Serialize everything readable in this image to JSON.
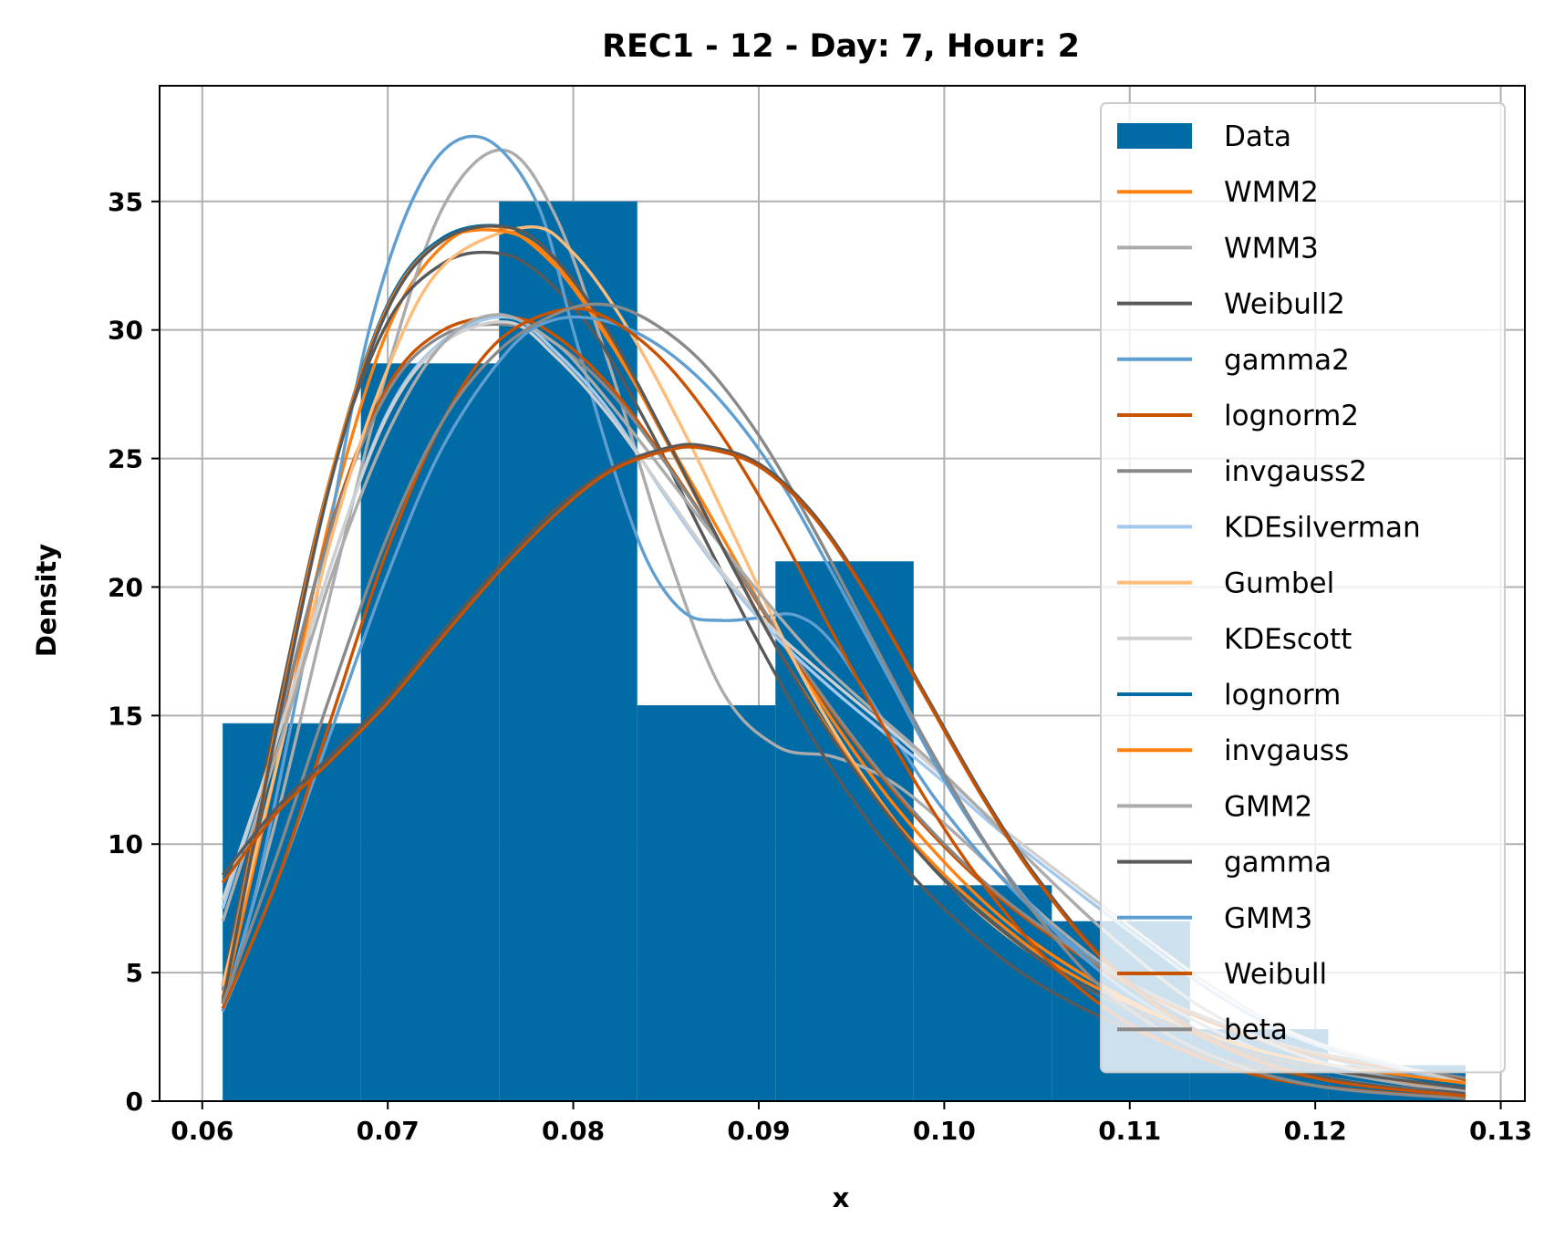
{
  "chart_data": {
    "type": "histogram",
    "title": "REC1 - 12 - Day: 7, Hour: 2",
    "xlabel": "x",
    "ylabel": "Density",
    "xlim": [
      0.0577,
      0.1313
    ],
    "ylim": [
      0,
      39.5
    ],
    "xticks": [
      0.06,
      0.07,
      0.08,
      0.09,
      0.1,
      0.11,
      0.12,
      0.13
    ],
    "xtick_labels": [
      "0.06",
      "0.07",
      "0.08",
      "0.09",
      "0.10",
      "0.11",
      "0.12",
      "0.13"
    ],
    "yticks": [
      0,
      5,
      10,
      15,
      20,
      25,
      30,
      35
    ],
    "ytick_labels": [
      "0",
      "5",
      "10",
      "15",
      "20",
      "25",
      "30",
      "35"
    ],
    "grid": true,
    "legend_position": "upper right",
    "histogram": {
      "name": "Data",
      "color": "#006BA4",
      "bin_edges": [
        0.0611,
        0.06855,
        0.076,
        0.08345,
        0.0909,
        0.09835,
        0.1058,
        0.11325,
        0.1207,
        0.1281
      ],
      "densities": [
        14.7,
        28.7,
        35.0,
        15.4,
        21.0,
        8.4,
        7.0,
        2.8,
        1.4
      ]
    },
    "series": [
      {
        "name": "WMM2",
        "color": "#FF800E",
        "x": [
          0.0611,
          0.064,
          0.067,
          0.07,
          0.073,
          0.076,
          0.079,
          0.082,
          0.085,
          0.088,
          0.091,
          0.094,
          0.097,
          0.1,
          0.103,
          0.106,
          0.11,
          0.115,
          0.12,
          0.1281
        ],
        "y": [
          3.8,
          13.0,
          23.0,
          30.0,
          33.3,
          34.0,
          32.5,
          29.5,
          25.8,
          22.0,
          18.2,
          14.8,
          11.8,
          9.3,
          7.2,
          5.6,
          3.9,
          2.3,
          1.3,
          0.4
        ]
      },
      {
        "name": "WMM3",
        "color": "#ABABAB",
        "x": [
          0.0611,
          0.064,
          0.067,
          0.07,
          0.073,
          0.0762,
          0.079,
          0.082,
          0.085,
          0.088,
          0.091,
          0.094,
          0.097,
          0.1,
          0.103,
          0.106,
          0.11,
          0.115,
          0.12,
          0.1281
        ],
        "y": [
          3.5,
          11.0,
          20.0,
          28.5,
          34.8,
          37.0,
          34.5,
          28.5,
          21.5,
          16.0,
          13.8,
          13.4,
          12.5,
          10.8,
          8.8,
          6.8,
          4.6,
          2.6,
          1.3,
          0.3
        ]
      },
      {
        "name": "Weibull2",
        "color": "#595959",
        "x": [
          0.0611,
          0.064,
          0.067,
          0.07,
          0.073,
          0.0758,
          0.078,
          0.081,
          0.084,
          0.087,
          0.09,
          0.093,
          0.096,
          0.099,
          0.102,
          0.105,
          0.109,
          0.114,
          0.12,
          0.1281
        ],
        "y": [
          4.5,
          15.0,
          24.5,
          30.3,
          32.6,
          33.0,
          32.3,
          30.0,
          26.3,
          22.0,
          17.8,
          14.0,
          10.8,
          8.2,
          6.2,
          4.6,
          3.1,
          1.8,
          0.9,
          0.3
        ]
      },
      {
        "name": "gamma2",
        "color": "#5F9ED1",
        "x": [
          0.0611,
          0.063,
          0.066,
          0.069,
          0.072,
          0.075,
          0.078,
          0.08,
          0.082,
          0.084,
          0.086,
          0.088,
          0.09,
          0.092,
          0.094,
          0.097,
          0.1,
          0.104,
          0.108,
          0.113,
          0.12,
          0.1281
        ],
        "y": [
          3.5,
          8.5,
          19.0,
          30.0,
          36.0,
          37.5,
          35.0,
          30.0,
          25.0,
          21.0,
          19.0,
          18.7,
          18.8,
          18.9,
          17.8,
          14.5,
          11.3,
          8.0,
          5.5,
          3.5,
          1.8,
          0.6
        ]
      },
      {
        "name": "lognorm2",
        "color": "#C85200",
        "x": [
          0.0611,
          0.064,
          0.067,
          0.07,
          0.073,
          0.0765,
          0.079,
          0.082,
          0.085,
          0.088,
          0.091,
          0.094,
          0.097,
          0.1,
          0.103,
          0.106,
          0.11,
          0.115,
          0.12,
          0.1281
        ],
        "y": [
          4.0,
          14.0,
          22.5,
          27.8,
          30.0,
          30.5,
          29.8,
          27.8,
          24.9,
          21.6,
          18.2,
          15.1,
          12.3,
          9.9,
          7.9,
          6.3,
          4.5,
          2.9,
          1.8,
          0.8
        ]
      },
      {
        "name": "invgauss2",
        "color": "#898989",
        "x": [
          0.0611,
          0.064,
          0.067,
          0.07,
          0.073,
          0.0765,
          0.079,
          0.082,
          0.085,
          0.088,
          0.091,
          0.094,
          0.097,
          0.1,
          0.103,
          0.106,
          0.11,
          0.115,
          0.12,
          0.1281
        ],
        "y": [
          4.3,
          14.2,
          22.4,
          27.6,
          29.8,
          30.2,
          29.5,
          27.6,
          24.8,
          21.6,
          18.3,
          15.2,
          12.4,
          10.0,
          8.0,
          6.4,
          4.6,
          3.0,
          1.9,
          0.9
        ]
      },
      {
        "name": "KDEsilverman",
        "color": "#A2C8EC",
        "x": [
          0.0611,
          0.064,
          0.067,
          0.07,
          0.073,
          0.0765,
          0.079,
          0.082,
          0.085,
          0.088,
          0.091,
          0.094,
          0.097,
          0.1,
          0.103,
          0.106,
          0.11,
          0.115,
          0.12,
          0.1281
        ],
        "y": [
          7.5,
          14.0,
          21.0,
          26.8,
          29.6,
          30.5,
          29.2,
          26.8,
          23.5,
          20.5,
          18.0,
          16.0,
          14.2,
          12.4,
          10.5,
          8.8,
          6.6,
          4.0,
          2.2,
          0.6
        ]
      },
      {
        "name": "Gumbel",
        "color": "#FFBC79",
        "x": [
          0.0611,
          0.064,
          0.067,
          0.07,
          0.073,
          0.0775,
          0.08,
          0.083,
          0.086,
          0.089,
          0.092,
          0.095,
          0.098,
          0.101,
          0.104,
          0.107,
          0.11,
          0.115,
          0.12,
          0.1281
        ],
        "y": [
          4.5,
          13.0,
          22.0,
          28.5,
          32.5,
          34.0,
          33.0,
          30.0,
          26.0,
          21.5,
          17.0,
          13.3,
          10.3,
          7.9,
          6.1,
          4.7,
          3.6,
          2.3,
          1.4,
          0.6
        ]
      },
      {
        "name": "KDEscott",
        "color": "#CFCFCF",
        "x": [
          0.0611,
          0.064,
          0.067,
          0.07,
          0.073,
          0.0765,
          0.079,
          0.082,
          0.085,
          0.088,
          0.091,
          0.094,
          0.097,
          0.1,
          0.103,
          0.106,
          0.11,
          0.115,
          0.12,
          0.1281
        ],
        "y": [
          7.8,
          14.0,
          21.0,
          26.7,
          29.5,
          30.3,
          29.0,
          26.6,
          23.6,
          20.6,
          18.2,
          16.3,
          14.5,
          12.6,
          10.7,
          9.0,
          6.8,
          4.2,
          2.3,
          0.7
        ]
      },
      {
        "name": "lognorm",
        "color": "#006BA4",
        "x": [
          0.0611,
          0.064,
          0.067,
          0.07,
          0.073,
          0.0765,
          0.079,
          0.082,
          0.085,
          0.088,
          0.091,
          0.094,
          0.097,
          0.1,
          0.103,
          0.106,
          0.11,
          0.115,
          0.12,
          0.1281
        ],
        "y": [
          3.8,
          14.5,
          24.5,
          31.0,
          33.6,
          34.0,
          32.8,
          29.8,
          25.8,
          21.6,
          17.6,
          14.1,
          11.1,
          8.7,
          6.8,
          5.2,
          3.7,
          2.3,
          1.4,
          0.6
        ]
      },
      {
        "name": "invgauss",
        "color": "#FF800E",
        "x": [
          0.0611,
          0.064,
          0.067,
          0.07,
          0.073,
          0.0765,
          0.079,
          0.082,
          0.085,
          0.088,
          0.091,
          0.094,
          0.097,
          0.1,
          0.103,
          0.106,
          0.11,
          0.115,
          0.12,
          0.1281
        ],
        "y": [
          3.9,
          14.6,
          24.5,
          30.9,
          33.5,
          33.8,
          32.6,
          29.6,
          25.7,
          21.6,
          17.6,
          14.2,
          11.2,
          8.8,
          6.9,
          5.3,
          3.8,
          2.4,
          1.5,
          0.7
        ]
      },
      {
        "name": "GMM2",
        "color": "#ABABAB",
        "x": [
          0.0611,
          0.064,
          0.067,
          0.07,
          0.073,
          0.076,
          0.079,
          0.081,
          0.084,
          0.087,
          0.09,
          0.093,
          0.096,
          0.099,
          0.102,
          0.105,
          0.109,
          0.114,
          0.12,
          0.1281
        ],
        "y": [
          7.0,
          13.5,
          20.5,
          26.0,
          29.5,
          30.6,
          29.5,
          28.0,
          25.3,
          22.5,
          19.8,
          17.3,
          15.3,
          13.4,
          11.3,
          9.1,
          6.4,
          3.6,
          1.6,
          0.4
        ]
      },
      {
        "name": "gamma",
        "color": "#595959",
        "x": [
          0.0611,
          0.064,
          0.067,
          0.07,
          0.073,
          0.0765,
          0.079,
          0.082,
          0.085,
          0.088,
          0.091,
          0.094,
          0.097,
          0.1,
          0.103,
          0.106,
          0.11,
          0.115,
          0.12,
          0.1281
        ],
        "y": [
          3.8,
          14.4,
          24.3,
          30.8,
          33.5,
          34.0,
          32.8,
          29.8,
          25.8,
          21.6,
          17.6,
          14.1,
          11.1,
          8.6,
          6.7,
          5.1,
          3.6,
          2.2,
          1.3,
          0.5
        ]
      },
      {
        "name": "GMM3",
        "color": "#5F9ED1",
        "x": [
          0.0611,
          0.064,
          0.067,
          0.07,
          0.073,
          0.0765,
          0.079,
          0.082,
          0.085,
          0.088,
          0.091,
          0.094,
          0.097,
          0.1,
          0.103,
          0.106,
          0.11,
          0.115,
          0.12,
          0.1281
        ],
        "y": [
          3.5,
          8.5,
          14.5,
          20.5,
          25.5,
          29.2,
          30.4,
          30.3,
          29.2,
          27.2,
          24.3,
          20.5,
          16.5,
          12.5,
          9.2,
          6.6,
          4.2,
          2.2,
          1.0,
          0.2
        ]
      },
      {
        "name": "Weibull",
        "color": "#C85200",
        "x": [
          0.0611,
          0.064,
          0.067,
          0.07,
          0.073,
          0.076,
          0.0795,
          0.082,
          0.085,
          0.088,
          0.091,
          0.094,
          0.097,
          0.1,
          0.103,
          0.106,
          0.11,
          0.115,
          0.12,
          0.1281
        ],
        "y": [
          3.6,
          8.5,
          15.0,
          21.5,
          26.5,
          29.6,
          30.8,
          30.4,
          28.7,
          25.9,
          22.3,
          18.2,
          14.2,
          10.6,
          7.6,
          5.2,
          3.0,
          1.4,
          0.6,
          0.1
        ]
      },
      {
        "name": "beta",
        "color": "#898989",
        "x": [
          0.0611,
          0.064,
          0.067,
          0.07,
          0.073,
          0.076,
          0.079,
          0.0815,
          0.084,
          0.087,
          0.09,
          0.093,
          0.096,
          0.099,
          0.102,
          0.105,
          0.109,
          0.114,
          0.12,
          0.1281
        ],
        "y": [
          3.8,
          9.5,
          16.0,
          22.0,
          26.5,
          29.2,
          30.6,
          31.0,
          30.4,
          28.7,
          25.9,
          22.2,
          18.1,
          14.0,
          10.3,
          7.2,
          4.1,
          1.9,
          0.6,
          0.1
        ]
      },
      {
        "name": "",
        "color": "#595959",
        "x": [
          0.0611,
          0.064,
          0.067,
          0.07,
          0.073,
          0.076,
          0.079,
          0.082,
          0.085,
          0.087,
          0.09,
          0.093,
          0.096,
          0.099,
          0.102,
          0.105,
          0.109,
          0.114,
          0.12,
          0.1281
        ],
        "y": [
          8.8,
          11.4,
          13.5,
          15.7,
          18.3,
          20.8,
          23.0,
          24.6,
          25.4,
          25.5,
          24.8,
          22.8,
          19.6,
          15.8,
          12.0,
          8.7,
          5.3,
          2.6,
          1.0,
          0.2
        ]
      },
      {
        "name": "",
        "color": "#C85200",
        "x": [
          0.0611,
          0.064,
          0.067,
          0.07,
          0.073,
          0.076,
          0.079,
          0.082,
          0.085,
          0.087,
          0.09,
          0.093,
          0.096,
          0.099,
          0.102,
          0.105,
          0.109,
          0.114,
          0.12,
          0.1281
        ],
        "y": [
          8.5,
          11.2,
          13.3,
          15.5,
          18.1,
          20.6,
          22.8,
          24.5,
          25.3,
          25.4,
          24.7,
          22.7,
          19.5,
          15.7,
          11.9,
          8.6,
          5.2,
          2.5,
          0.9,
          0.2
        ]
      }
    ]
  }
}
